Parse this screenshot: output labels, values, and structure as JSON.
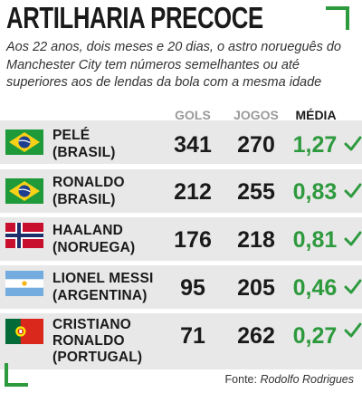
{
  "title": "ARTILHARIA PRECOCE",
  "subtitle": "Aos 22 anos, dois meses e 20 dias, o astro norueguês do Manchester City tem números semelhantes ou até superiores aos de lendas da bola com a mesma idade",
  "headers": {
    "gols": "GOLS",
    "jogos": "JOGOS",
    "media": "MÉDIA"
  },
  "accent_color": "#2e9a3e",
  "rows": [
    {
      "flag": "brazil-flag",
      "name_line1": "PELÉ",
      "name_line2": "(BRASIL)",
      "name_line3": "",
      "gols": "341",
      "jogos": "270",
      "media": "1,27"
    },
    {
      "flag": "brazil-flag",
      "name_line1": "RONALDO",
      "name_line2": "(BRASIL)",
      "name_line3": "",
      "gols": "212",
      "jogos": "255",
      "media": "0,83"
    },
    {
      "flag": "norway-flag",
      "name_line1": "HAALAND",
      "name_line2": "(NORUEGA)",
      "name_line3": "",
      "gols": "176",
      "jogos": "218",
      "media": "0,81"
    },
    {
      "flag": "argentina-flag",
      "name_line1": "LIONEL MESSI",
      "name_line2": "(ARGENTINA)",
      "name_line3": "",
      "gols": "95",
      "jogos": "205",
      "media": "0,46"
    },
    {
      "flag": "portugal-flag",
      "name_line1": "CRISTIANO",
      "name_line2": "RONALDO",
      "name_line3": "(PORTUGAL)",
      "gols": "71",
      "jogos": "262",
      "media": "0,27"
    }
  ],
  "source": {
    "label": "Fonte:",
    "author": "Rodolfo Rodrigues"
  }
}
